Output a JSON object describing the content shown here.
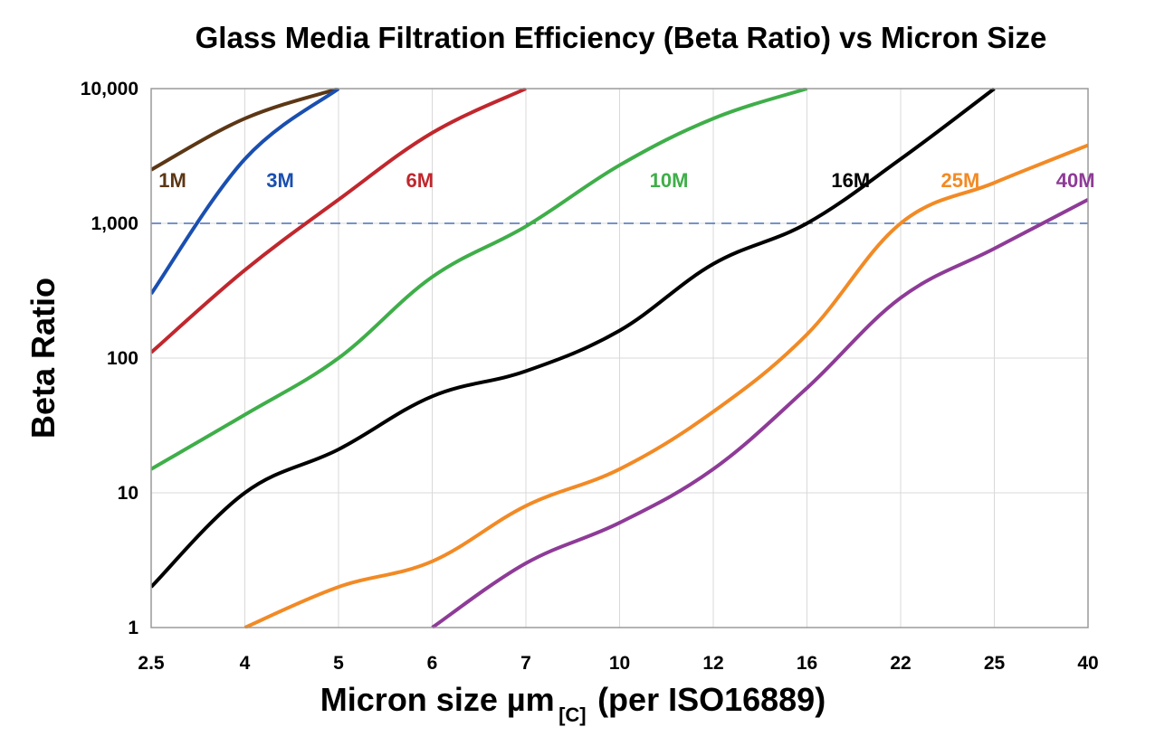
{
  "chart_data": {
    "type": "line",
    "title": "Glass Media Filtration Efficiency (Beta Ratio) vs Micron Size",
    "xlabel_main": "Micron size µm",
    "xlabel_sub": "[C]",
    "xlabel_tail": "(per ISO16889)",
    "ylabel": "Beta Ratio",
    "yscale": "log",
    "ylim": [
      1,
      10000
    ],
    "y_ticks": [
      1,
      10,
      100,
      1000,
      10000
    ],
    "y_tick_labels": [
      "1",
      "10",
      "100",
      "1,000",
      "10,000"
    ],
    "x_categories": [
      "2.5",
      "4",
      "5",
      "6",
      "7",
      "10",
      "12",
      "16",
      "22",
      "25",
      "40"
    ],
    "reference_line": {
      "value": 1000,
      "style": "dashed",
      "color": "#4a6fb5"
    },
    "grid": true,
    "series": [
      {
        "name": "1M",
        "color": "#5c3715",
        "points": [
          [
            0,
            2500
          ],
          [
            1,
            6000
          ],
          [
            2,
            10000
          ]
        ]
      },
      {
        "name": "3M",
        "color": "#1a4fb0",
        "points": [
          [
            0,
            300
          ],
          [
            1,
            3000
          ],
          [
            2,
            10000
          ]
        ]
      },
      {
        "name": "6M",
        "color": "#c0272d",
        "points": [
          [
            0,
            110
          ],
          [
            1,
            450
          ],
          [
            2,
            1500
          ],
          [
            3,
            4700
          ],
          [
            4,
            10000
          ]
        ]
      },
      {
        "name": "10M",
        "color": "#3fae49",
        "points": [
          [
            0,
            15
          ],
          [
            1,
            38
          ],
          [
            2,
            100
          ],
          [
            3,
            400
          ],
          [
            4,
            950
          ],
          [
            5,
            2700
          ],
          [
            6,
            6000
          ],
          [
            7,
            10000
          ]
        ]
      },
      {
        "name": "16M",
        "color": "#000000",
        "points": [
          [
            0,
            2
          ],
          [
            1,
            10
          ],
          [
            2,
            21
          ],
          [
            3,
            52
          ],
          [
            4,
            80
          ],
          [
            5,
            160
          ],
          [
            6,
            500
          ],
          [
            7,
            1000
          ],
          [
            8,
            3000
          ],
          [
            9,
            10000
          ]
        ]
      },
      {
        "name": "25M",
        "color": "#f28a25",
        "points": [
          [
            1,
            1
          ],
          [
            2,
            2
          ],
          [
            3,
            3.1
          ],
          [
            4,
            8
          ],
          [
            5,
            15
          ],
          [
            6,
            40
          ],
          [
            7,
            150
          ],
          [
            8,
            1000
          ],
          [
            9,
            2000
          ],
          [
            10,
            3800
          ]
        ]
      },
      {
        "name": "40M",
        "color": "#8e3b97",
        "points": [
          [
            3,
            1
          ],
          [
            4,
            3
          ],
          [
            5,
            6
          ],
          [
            6,
            15
          ],
          [
            7,
            60
          ],
          [
            8,
            280
          ],
          [
            9,
            650
          ],
          [
            10,
            1500
          ]
        ]
      }
    ]
  }
}
